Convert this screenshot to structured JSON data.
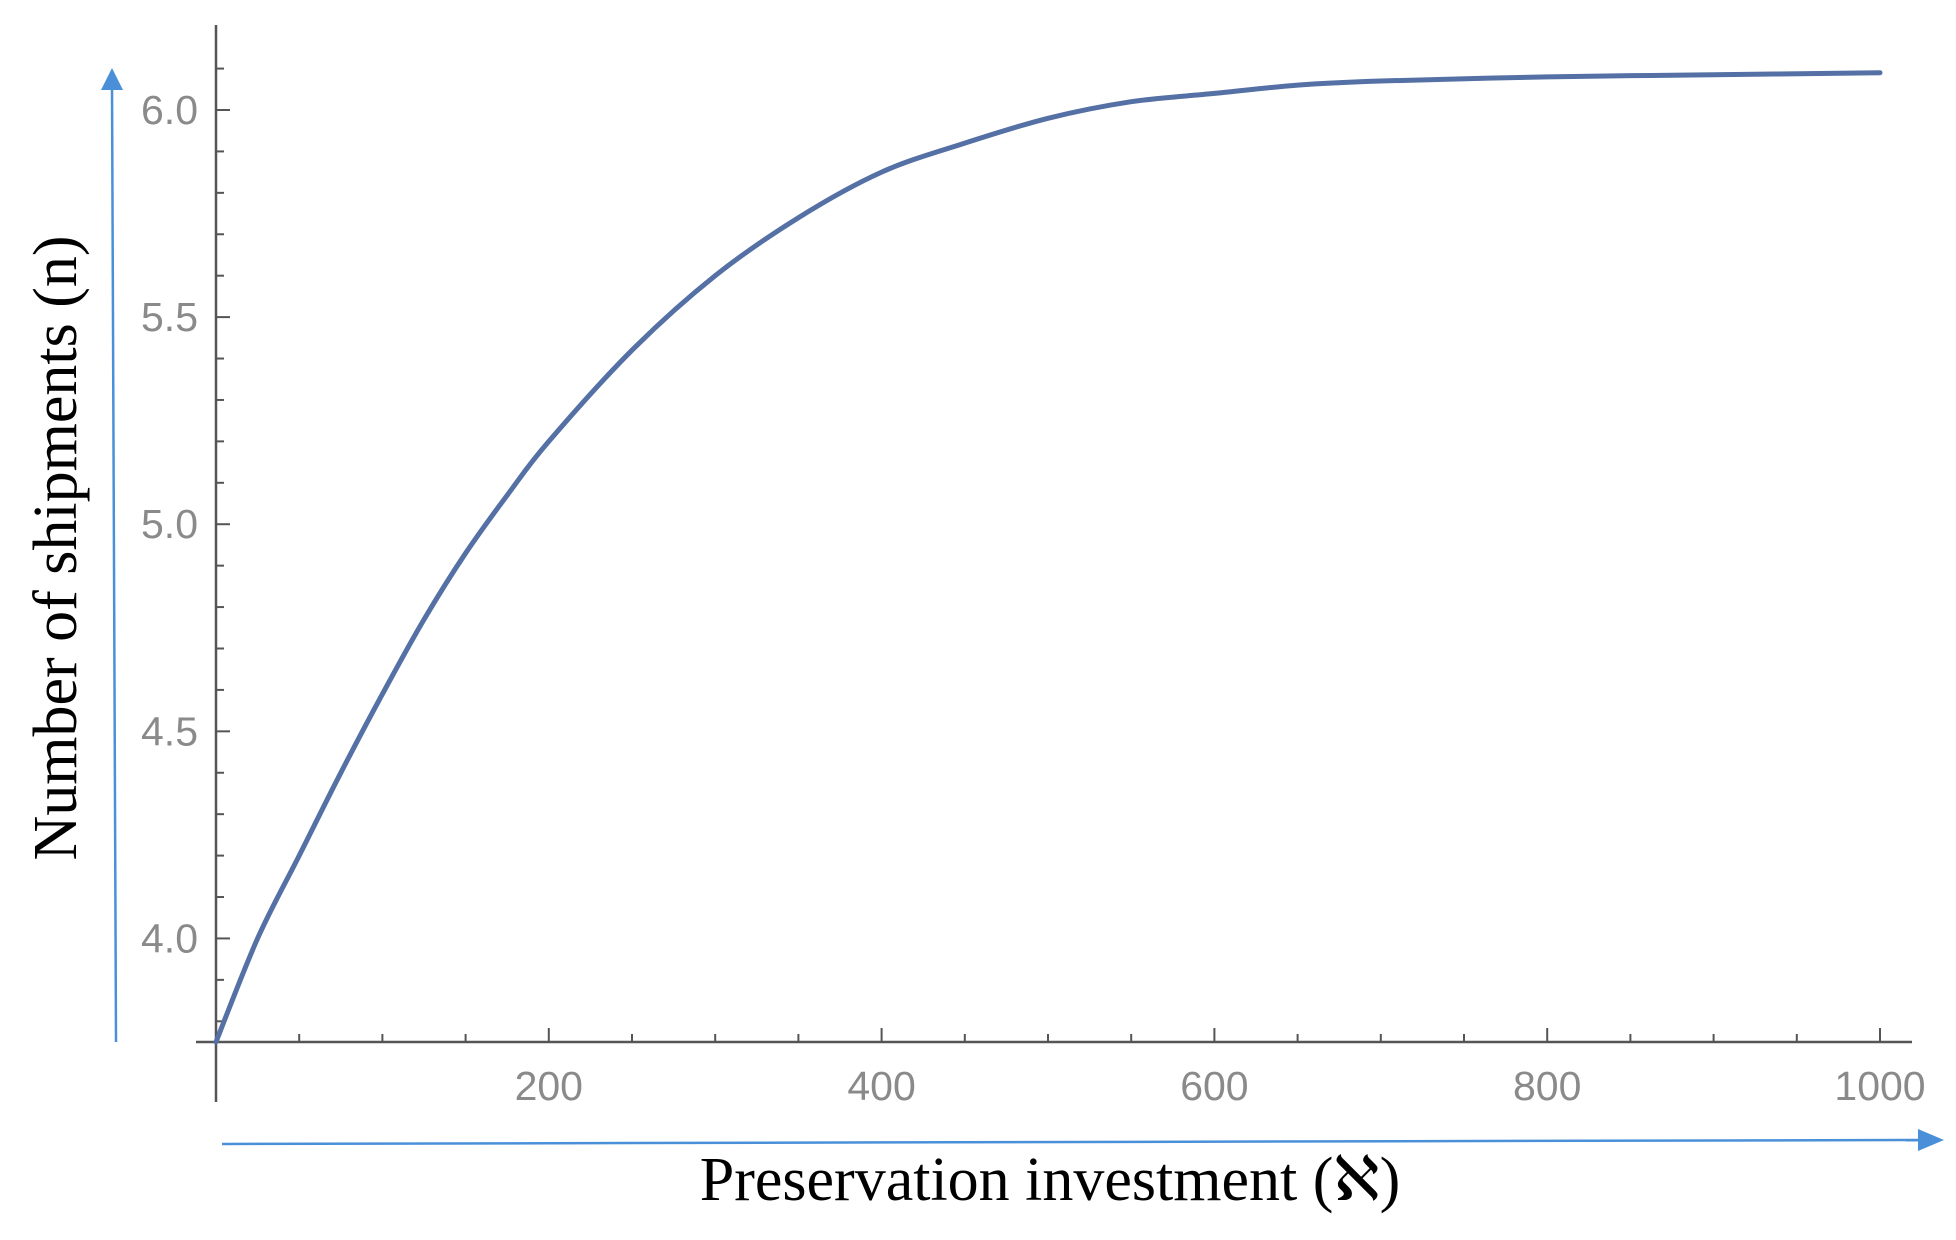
{
  "chart_data": {
    "type": "line",
    "title": "",
    "xlabel": "Preservation investment (ℵ)",
    "ylabel": "Number of shipments (n)",
    "xlim": [
      0,
      1000
    ],
    "ylim": [
      3.75,
      6.2
    ],
    "x_ticks": [
      200,
      400,
      600,
      800,
      1000
    ],
    "x_tick_labels": [
      "200",
      "400",
      "600",
      "800",
      "1000"
    ],
    "y_ticks": [
      4.0,
      4.5,
      5.0,
      5.5,
      6.0
    ],
    "y_tick_labels": [
      "4.0",
      "4.5",
      "5.0",
      "5.5",
      "6.0"
    ],
    "grid": false,
    "series": [
      {
        "color": "#5470a4",
        "x": [
          0,
          25,
          50,
          75,
          100,
          125,
          150,
          175,
          200,
          250,
          300,
          350,
          400,
          450,
          500,
          550,
          600,
          650,
          700,
          800,
          900,
          1000
        ],
        "y": [
          3.75,
          4.0,
          4.2,
          4.4,
          4.59,
          4.77,
          4.93,
          5.07,
          5.2,
          5.42,
          5.6,
          5.74,
          5.85,
          5.92,
          5.98,
          6.02,
          6.04,
          6.06,
          6.07,
          6.08,
          6.085,
          6.09
        ]
      }
    ],
    "colors": {
      "axis": "#555555",
      "tick_label": "#8a8a8a",
      "arrow": "#4a90d9",
      "line": "#5470a4"
    }
  }
}
